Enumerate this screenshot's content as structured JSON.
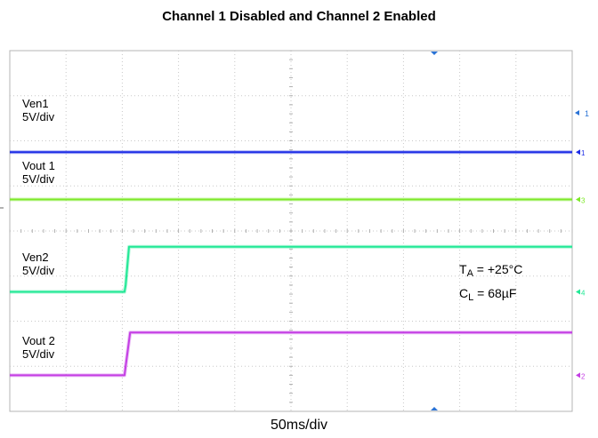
{
  "chart_data": {
    "type": "line",
    "title": "Channel 1 Disabled and Channel 2 Enabled",
    "xlabel": "50ms/div",
    "ylabel": "",
    "grid": true,
    "x_divisions": 10,
    "y_divisions": 8,
    "time_per_div_ms": 50,
    "xlim_ms": [
      0,
      500
    ],
    "enable_time_ms": 105,
    "series": [
      {
        "name": "Ven1",
        "scale": "5V/div",
        "color": "#1c2ce6",
        "marker": "1",
        "x_ms": [
          0,
          500
        ],
        "y_div": [
          2.25,
          2.25
        ]
      },
      {
        "name": "Vout 1",
        "scale": "5V/div",
        "color": "#7ee82a",
        "marker": "3",
        "x_ms": [
          0,
          500
        ],
        "y_div": [
          3.3,
          3.3
        ]
      },
      {
        "name": "Ven2",
        "scale": "5V/div",
        "color": "#22e896",
        "marker": "4",
        "x_ms": [
          0,
          102,
          103,
          106,
          500
        ],
        "y_div": [
          5.35,
          5.35,
          5.2,
          4.35,
          4.35
        ]
      },
      {
        "name": "Vout 2",
        "scale": "5V/div",
        "color": "#c43ee4",
        "marker": "2",
        "x_ms": [
          0,
          102,
          103,
          107,
          500
        ],
        "y_div": [
          7.2,
          7.2,
          7.0,
          6.25,
          6.25
        ]
      }
    ],
    "annotations": {
      "ta_symbol": "T",
      "ta_sub": "A",
      "ta_value": "= +25°C",
      "cl_symbol": "C",
      "cl_sub": "L",
      "cl_value": "= 68µF"
    },
    "trigger_marker_label": "1"
  }
}
